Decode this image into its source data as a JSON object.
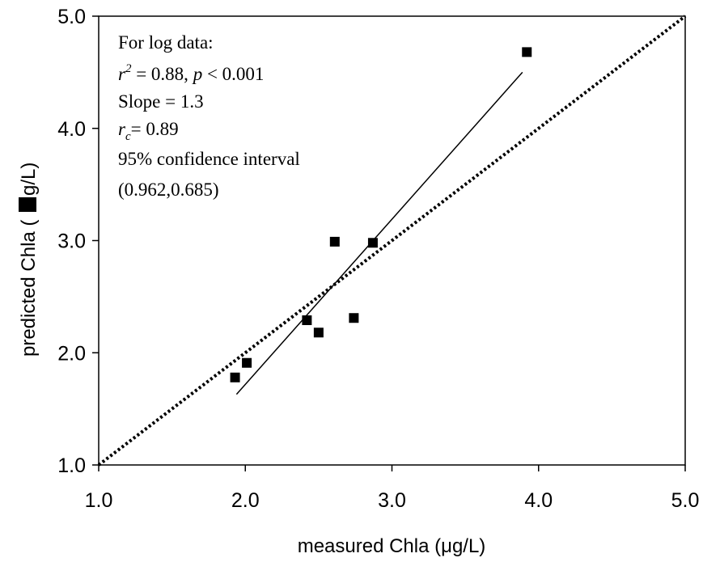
{
  "chart_data": {
    "type": "scatter",
    "xlabel": "measured Chla (μg/L)",
    "ylabel_left": "predicted Chla (",
    "ylabel_right": "g/L)",
    "xlim": [
      1.0,
      5.0
    ],
    "ylim": [
      1.0,
      5.0
    ],
    "xticks": [
      "1.0",
      "2.0",
      "3.0",
      "4.0",
      "5.0"
    ],
    "yticks": [
      "1.0",
      "2.0",
      "3.0",
      "4.0",
      "5.0"
    ],
    "grid": false,
    "points": [
      {
        "x": 1.93,
        "y": 1.78
      },
      {
        "x": 2.01,
        "y": 1.91
      },
      {
        "x": 2.42,
        "y": 2.29
      },
      {
        "x": 2.5,
        "y": 2.18
      },
      {
        "x": 2.61,
        "y": 2.99
      },
      {
        "x": 2.74,
        "y": 2.31
      },
      {
        "x": 2.87,
        "y": 2.98
      },
      {
        "x": 3.92,
        "y": 4.68
      }
    ],
    "regression_line": {
      "x1": 1.94,
      "y1": 1.63,
      "x2": 3.89,
      "y2": 4.5
    },
    "identity_line": {
      "x1": 1.0,
      "y1": 1.0,
      "x2": 5.0,
      "y2": 5.0
    },
    "annotation": {
      "line1": "For log data:",
      "line2_r": "r",
      "line2_sup": "2",
      "line2_mid": " = 0.88, ",
      "line2_p": "p",
      "line2_end": " < 0.001",
      "line3": "Slope = 1.3",
      "line4_r": "r",
      "line4_sub": "c",
      "line4_end": "= 0.89",
      "line5": "95% confidence interval",
      "line6": "(0.962,0.685)"
    }
  }
}
